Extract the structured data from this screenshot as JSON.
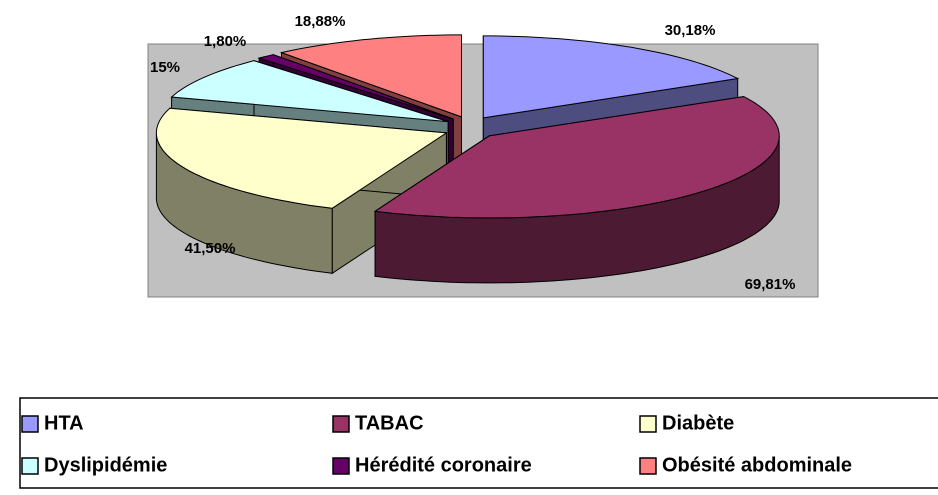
{
  "chart_data": {
    "type": "pie3d",
    "categories": [
      "HTA",
      "TABAC",
      "Diabète",
      "Dyslipidémie",
      "Hérédité coronaire",
      "Obésité abdominale"
    ],
    "values": [
      30.18,
      69.81,
      41.5,
      15,
      1.8,
      18.88
    ],
    "value_labels": [
      "30,18%",
      "69,81%",
      "41,50%",
      "15%",
      "1,80%",
      "18,88%"
    ],
    "colors": [
      "#9999ff",
      "#993366",
      "#ffffcc",
      "#ccffff",
      "#660066",
      "#ff8080"
    ],
    "legend": "bottom"
  }
}
